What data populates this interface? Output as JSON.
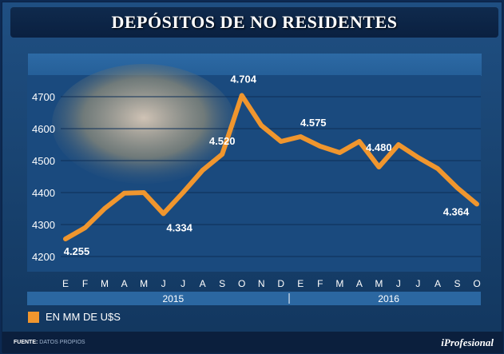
{
  "title": "DEPÓSITOS DE NO RESIDENTES",
  "legend": {
    "label": "EN MM DE U$S",
    "color": "#f0962e"
  },
  "footer": {
    "source_label": "FUENTE:",
    "source_value": "DATOS PROPIOS",
    "brand": "iProfesional"
  },
  "chart_data": {
    "type": "line",
    "title": "DEPÓSITOS DE NO RESIDENTES",
    "xlabel": "",
    "ylabel": "",
    "ylim": [
      4200,
      4800
    ],
    "yticks": [
      4200,
      4300,
      4400,
      4500,
      4600,
      4700
    ],
    "ytick_labels": [
      "4200",
      "4300",
      "4400",
      "4500",
      "4600",
      "4700"
    ],
    "categories": [
      "E",
      "F",
      "M",
      "A",
      "M",
      "J",
      "J",
      "A",
      "S",
      "O",
      "N",
      "D",
      "E",
      "F",
      "M",
      "A",
      "M",
      "J",
      "J",
      "A",
      "S",
      "O"
    ],
    "years": [
      {
        "label": "2015",
        "start": 0,
        "end": 11
      },
      {
        "label": "2016",
        "start": 12,
        "end": 21
      }
    ],
    "series": [
      {
        "name": "EN MM DE U$S",
        "color": "#f0962e",
        "values": [
          4255,
          4290,
          4350,
          4398,
          4400,
          4334,
          4400,
          4470,
          4520,
          4704,
          4610,
          4560,
          4575,
          4545,
          4525,
          4560,
          4480,
          4550,
          4510,
          4475,
          4415,
          4364
        ]
      }
    ],
    "annotations": [
      {
        "index": 0,
        "label": "4.255"
      },
      {
        "index": 5,
        "label": "4.334"
      },
      {
        "index": 8,
        "label": "4.520"
      },
      {
        "index": 9,
        "label": "4.704"
      },
      {
        "index": 12,
        "label": "4.575"
      },
      {
        "index": 16,
        "label": "4.480"
      },
      {
        "index": 21,
        "label": "4.364"
      }
    ]
  }
}
